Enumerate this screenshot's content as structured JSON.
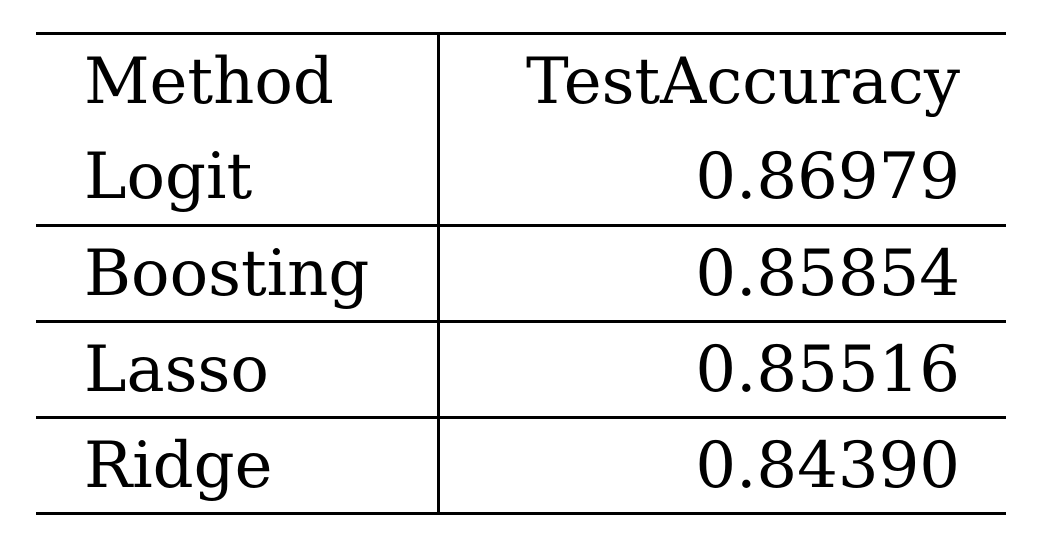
{
  "table": {
    "headers": [
      "Method",
      "TestAccuracy"
    ],
    "rows": [
      [
        "Logit",
        "0.86979"
      ],
      [
        "Boosting",
        "0.85854"
      ],
      [
        "Lasso",
        "0.85516"
      ],
      [
        "Ridge",
        "0.84390"
      ]
    ]
  }
}
